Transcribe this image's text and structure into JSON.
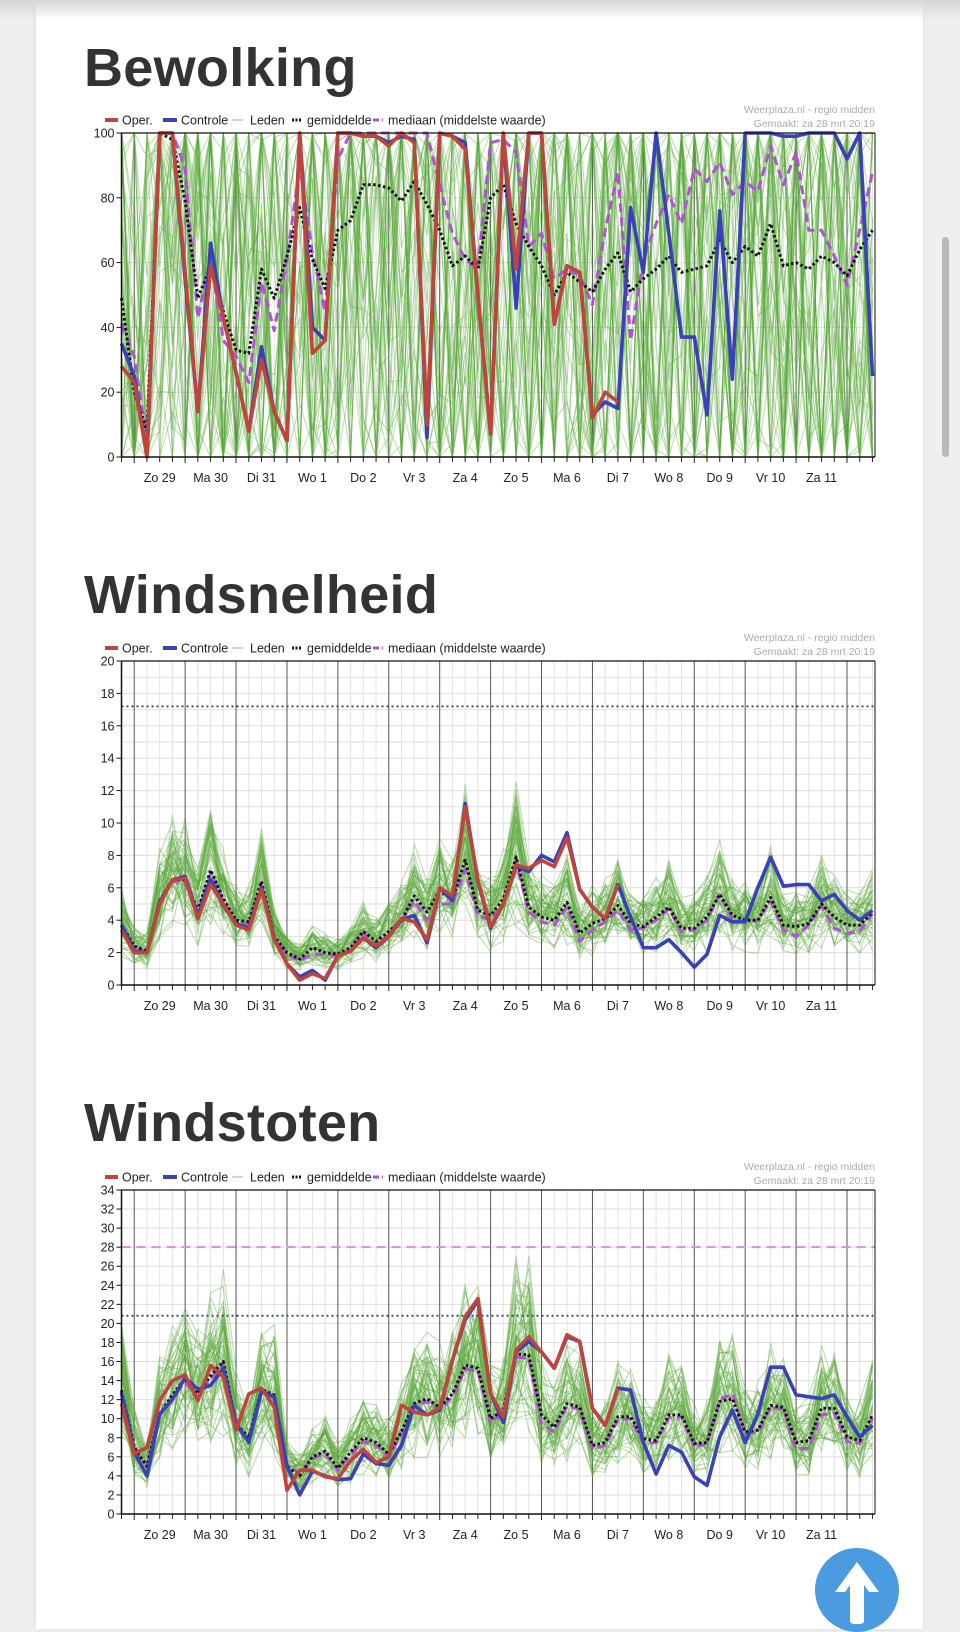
{
  "chart_data": [
    {
      "type": "line",
      "title": "Bewolking",
      "ylim": [
        0,
        100
      ],
      "yticks": [
        0,
        20,
        40,
        60,
        80,
        100
      ],
      "ygrid_step": 20,
      "x_interval_hours": 6,
      "xtick_labels": [
        "Zo 29",
        "Ma 30",
        "Di 31",
        "Wo 1",
        "Do 2",
        "Vr 3",
        "Za 4",
        "Zo 5",
        "Ma 6",
        "Di 7",
        "Wo 8",
        "Do 9",
        "Vr 10",
        "Za 11"
      ],
      "legend": {
        "oper": "Oper.",
        "controle": "Controle",
        "leden": "Leden",
        "gemiddelde": "gemiddelde",
        "mediaan": "mediaan (middelste waarde)"
      },
      "credit": [
        "Weerplaza.nl - regio midden",
        "Gemaakt: za 28 mrt 20:19"
      ],
      "thresholds": [],
      "series": {
        "oper": [
          28,
          23,
          0,
          100,
          100,
          57,
          14,
          59,
          43,
          26,
          8,
          30,
          14,
          5,
          100,
          32,
          36,
          100,
          100,
          99,
          99,
          96,
          100,
          97,
          10,
          100,
          99,
          95,
          50,
          7,
          100,
          58,
          100,
          100,
          41,
          59,
          57,
          12,
          20,
          17
        ],
        "controle": [
          35,
          25,
          0,
          100,
          100,
          55,
          14,
          66,
          43,
          26,
          8,
          34,
          14,
          5,
          100,
          40,
          36,
          100,
          100,
          99,
          99,
          97,
          99,
          98,
          6,
          100,
          99,
          97,
          50,
          7,
          100,
          46,
          100,
          100,
          41,
          59,
          57,
          13,
          17,
          15,
          77,
          57,
          100,
          69,
          37,
          37,
          13,
          76,
          24,
          100,
          100,
          100,
          99,
          99,
          100,
          100,
          100,
          92,
          100,
          25
        ],
        "gemiddelde": [
          49,
          20,
          8,
          100,
          98,
          79,
          49,
          59,
          45,
          33,
          32,
          58,
          49,
          62,
          77,
          61,
          52,
          70,
          73,
          84,
          84,
          83,
          79,
          85,
          78,
          70,
          59,
          62,
          58,
          80,
          84,
          72,
          65,
          59,
          50,
          57,
          54,
          51,
          58,
          63,
          51,
          55,
          58,
          62,
          57,
          58,
          59,
          67,
          60,
          65,
          62,
          72,
          59,
          60,
          58,
          62,
          60,
          56,
          64,
          70
        ],
        "mediaan": [
          41,
          31,
          5,
          100,
          100,
          89,
          43,
          61,
          36,
          31,
          23,
          54,
          39,
          61,
          90,
          63,
          45,
          92,
          100,
          100,
          100,
          100,
          100,
          100,
          100,
          84,
          69,
          61,
          58,
          97,
          98,
          94,
          65,
          69,
          55,
          58,
          56,
          47,
          70,
          88,
          36,
          61,
          72,
          81,
          72,
          89,
          85,
          91,
          81,
          85,
          82,
          96,
          84,
          94,
          70,
          70,
          62,
          53,
          70,
          88
        ]
      }
    },
    {
      "type": "line",
      "title": "Windsnelheid",
      "ylim": [
        0,
        20
      ],
      "yticks": [
        0,
        2,
        4,
        6,
        8,
        10,
        12,
        14,
        16,
        18,
        20
      ],
      "ygrid_step": 1,
      "x_interval_hours": 6,
      "xtick_labels": [
        "Zo 29",
        "Ma 30",
        "Di 31",
        "Wo 1",
        "Do 2",
        "Vr 3",
        "Za 4",
        "Zo 5",
        "Ma 6",
        "Di 7",
        "Wo 8",
        "Do 9",
        "Vr 10",
        "Za 11"
      ],
      "legend": {
        "oper": "Oper.",
        "controle": "Controle",
        "leden": "Leden",
        "gemiddelde": "gemiddelde",
        "mediaan": "mediaan (middelste waarde)"
      },
      "credit": [
        "Weerplaza.nl - regio midden",
        "Gemaakt: za 28 mrt 20:19"
      ],
      "thresholds": [
        {
          "value": 17.2,
          "style": "dotted",
          "color": "#2f5a5a"
        }
      ],
      "series": {
        "oper": [
          3.4,
          2.0,
          2.0,
          5.0,
          6.5,
          6.6,
          4.1,
          6.2,
          5.0,
          3.7,
          3.4,
          5.9,
          2.8,
          1.3,
          0.3,
          0.7,
          0.4,
          1.8,
          2.1,
          2.9,
          2.4,
          3.0,
          4.1,
          3.9,
          2.8,
          6.0,
          5.5,
          11.0,
          6.5,
          3.6,
          5.0,
          7.4,
          7.2,
          7.7,
          7.3,
          9.1,
          5.9,
          4.8,
          4.1,
          6.2
        ],
        "controle": [
          3.7,
          2.1,
          2.0,
          5.1,
          6.5,
          6.7,
          4.3,
          6.5,
          4.9,
          3.8,
          3.5,
          6.0,
          2.9,
          1.3,
          0.5,
          0.9,
          0.3,
          1.8,
          2.1,
          2.9,
          2.3,
          3.0,
          4.0,
          4.3,
          2.6,
          6.0,
          5.2,
          11.2,
          6.4,
          3.5,
          5.0,
          7.3,
          7.0,
          8.0,
          7.6,
          9.4,
          5.9,
          4.8,
          4.1,
          6.2,
          4.2,
          2.3,
          2.3,
          2.8,
          2.0,
          1.1,
          1.9,
          4.3,
          3.9,
          3.9,
          6.0,
          7.9,
          6.1,
          6.2,
          6.2,
          5.2,
          5.6,
          4.6,
          4.0,
          4.6
        ],
        "gemiddelde": [
          3.7,
          2.4,
          2.1,
          5.2,
          6.5,
          6.5,
          4.6,
          7.1,
          5.3,
          4.0,
          3.9,
          6.4,
          3.0,
          2.0,
          1.6,
          2.3,
          2.0,
          1.9,
          2.3,
          3.3,
          2.7,
          3.3,
          4.0,
          5.5,
          4.5,
          5.8,
          5.3,
          7.7,
          4.6,
          4.3,
          5.3,
          7.9,
          4.8,
          4.2,
          4.0,
          5.1,
          3.2,
          3.8,
          4.1,
          4.9,
          3.8,
          3.6,
          4.2,
          4.8,
          3.5,
          3.5,
          4.2,
          5.6,
          4.3,
          4.0,
          4.0,
          5.4,
          3.7,
          3.6,
          3.8,
          5.0,
          4.2,
          3.7,
          3.7,
          4.5
        ],
        "mediaan": [
          3.6,
          2.3,
          2.0,
          5.1,
          6.4,
          6.3,
          4.4,
          6.9,
          5.2,
          3.9,
          3.7,
          6.2,
          2.9,
          1.9,
          1.5,
          1.9,
          1.9,
          1.8,
          2.2,
          3.2,
          2.4,
          3.1,
          3.9,
          5.2,
          4.0,
          5.0,
          5.0,
          7.1,
          4.3,
          4.0,
          5.0,
          7.6,
          4.5,
          3.9,
          3.7,
          4.8,
          2.7,
          3.4,
          3.9,
          4.6,
          3.4,
          3.5,
          4.0,
          4.7,
          3.3,
          3.4,
          4.0,
          5.6,
          4.1,
          3.9,
          4.0,
          5.2,
          3.4,
          3.0,
          3.7,
          4.9,
          3.5,
          3.2,
          3.3,
          4.4
        ]
      }
    },
    {
      "type": "line",
      "title": "Windstoten",
      "ylim": [
        0,
        34
      ],
      "yticks": [
        0,
        2,
        4,
        6,
        8,
        10,
        12,
        14,
        16,
        18,
        20,
        22,
        24,
        26,
        28,
        30,
        32,
        34
      ],
      "ygrid_step": 2,
      "x_interval_hours": 6,
      "xtick_labels": [
        "Zo 29",
        "Ma 30",
        "Di 31",
        "Wo 1",
        "Do 2",
        "Vr 3",
        "Za 4",
        "Zo 5",
        "Ma 6",
        "Di 7",
        "Wo 8",
        "Do 9",
        "Vr 10",
        "Za 11"
      ],
      "legend": {
        "oper": "Oper.",
        "controle": "Controle",
        "leden": "Leden",
        "gemiddelde": "gemiddelde",
        "mediaan": "mediaan (middelste waarde)"
      },
      "credit": [
        "Weerplaza.nl - regio midden",
        "Gemaakt: za 28 mrt 20:19"
      ],
      "thresholds": [
        {
          "value": 20.8,
          "style": "dotted",
          "color": "#2f5a5a"
        },
        {
          "value": 28,
          "style": "dashed",
          "color": "#e08ae8"
        }
      ],
      "series": {
        "oper": [
          11.6,
          6.3,
          7.0,
          11.9,
          14.0,
          14.6,
          11.9,
          15.6,
          14.4,
          8.8,
          12.6,
          13.2,
          11.2,
          2.5,
          4.6,
          4.6,
          3.9,
          3.7,
          5.6,
          6.8,
          5.4,
          6.0,
          11.4,
          10.7,
          10.4,
          11.1,
          16.1,
          20.7,
          22.6,
          12.6,
          10.2,
          17.2,
          18.6,
          17.0,
          15.3,
          18.8,
          18.1,
          11.1,
          9.3,
          13.2
        ],
        "controle": [
          12.8,
          6.5,
          4.0,
          10.5,
          12.0,
          14.3,
          13.1,
          13.5,
          15.3,
          9.5,
          7.5,
          12.9,
          12.3,
          5.0,
          2.0,
          4.5,
          4.0,
          3.6,
          3.7,
          6.3,
          5.3,
          5.1,
          7.2,
          11.4,
          10.4,
          10.9,
          16.1,
          20.4,
          22.4,
          12.6,
          9.6,
          17.0,
          18.1,
          17.0,
          15.3,
          18.6,
          18.1,
          11.1,
          9.3,
          13.2,
          13.0,
          7.5,
          4.2,
          7.2,
          6.5,
          3.9,
          3.0,
          8.1,
          10.9,
          7.5,
          10.5,
          15.4,
          15.4,
          12.5,
          12.3,
          12.1,
          12.5,
          10.2,
          8.1,
          9.3
        ],
        "gemiddelde": [
          13.0,
          7.0,
          5.0,
          10.5,
          12.5,
          14.2,
          12.6,
          14.5,
          16.0,
          9.5,
          8.0,
          13.1,
          12.5,
          5.0,
          4.0,
          6.0,
          6.6,
          4.8,
          6.5,
          8.0,
          7.5,
          6.3,
          8.7,
          11.6,
          12.1,
          11.2,
          12.6,
          15.6,
          15.3,
          10.0,
          10.9,
          16.8,
          16.7,
          10.4,
          9.1,
          11.6,
          11.2,
          7.2,
          7.5,
          10.2,
          10.2,
          7.9,
          7.7,
          10.4,
          10.4,
          7.4,
          7.5,
          11.8,
          12.1,
          8.6,
          8.8,
          11.4,
          11.2,
          7.5,
          7.7,
          11.1,
          11.1,
          8.1,
          7.7,
          10.4
        ],
        "mediaan": [
          12.5,
          6.8,
          5.2,
          10.3,
          12.2,
          13.8,
          12.3,
          14.2,
          15.6,
          9.2,
          7.8,
          12.8,
          12.2,
          5.2,
          4.2,
          5.8,
          6.4,
          4.6,
          6.2,
          7.6,
          7.2,
          6.0,
          8.4,
          11.3,
          11.8,
          10.9,
          12.3,
          15.2,
          15.0,
          9.6,
          10.6,
          16.5,
          16.3,
          9.5,
          8.6,
          11.3,
          11.0,
          6.8,
          7.2,
          9.9,
          10.0,
          7.4,
          7.5,
          10.1,
          10.2,
          7.0,
          7.4,
          12.0,
          12.6,
          8.4,
          8.6,
          11.2,
          11.0,
          6.8,
          6.9,
          10.4,
          10.6,
          7.6,
          7.4,
          10.0
        ]
      }
    }
  ],
  "colors": {
    "oper": "#c0443a",
    "controle": "#3a40b8",
    "leden": "#5aa83a",
    "gemiddelde": "#111111",
    "mediaan": "#b44fd8",
    "scroll_top_button": "#4a9be0"
  },
  "icons": {
    "scroll_top": "arrow-up-icon"
  }
}
